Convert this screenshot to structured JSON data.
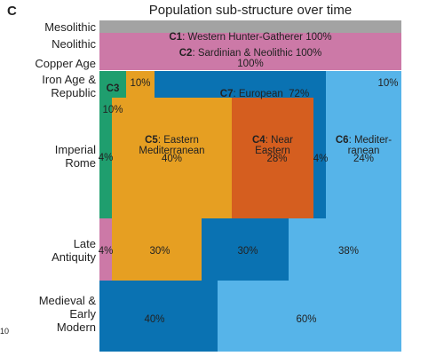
{
  "panel_letter": "C",
  "edge_mark": "10",
  "chart_data": {
    "type": "stacked-area",
    "title": "Population sub-structure over time",
    "periods": [
      {
        "label": "Mesolithic"
      },
      {
        "label": "Neolithic"
      },
      {
        "label": "Copper Age"
      },
      {
        "label": "Iron Age &\nRepublic"
      },
      {
        "label": "Imperial\nRome"
      },
      {
        "label": "Late\nAntiquity"
      },
      {
        "label": "Medieval &\nEarly\nModern"
      }
    ],
    "components": [
      {
        "id": "C1",
        "name": "Western Hunter-Gatherer",
        "color": "#a3a3a3"
      },
      {
        "id": "C2",
        "name": "Sardinian & Neolithic",
        "color": "#cc79a7"
      },
      {
        "id": "C3",
        "name": "",
        "color": "#1f9e6e"
      },
      {
        "id": "C4",
        "name": "Near\nEastern",
        "color": "#d55e1f"
      },
      {
        "id": "C5",
        "name": "Eastern\nMediterranean",
        "color": "#e69f22"
      },
      {
        "id": "C6",
        "name": "Mediter-\nranean",
        "color": "#56b4e9"
      },
      {
        "id": "C7",
        "name": "European",
        "color": "#0a72b2"
      }
    ],
    "values": {
      "Mesolithic": {
        "C1": 100
      },
      "Neolithic": {
        "C2": 100
      },
      "Copper Age": {
        "C2": 100
      },
      "Iron Age & Republic": {
        "C3": 10,
        "C5": 10,
        "C7": 72,
        "C6": 10
      },
      "Imperial Rome": {
        "C3": 4,
        "C5": 40,
        "C4": 28,
        "C7": 4,
        "C6": 24
      },
      "Late Antiquity": {
        "C2": 4,
        "C5": 30,
        "C7": 30,
        "C6": 38
      },
      "Medieval & Early Modern": {
        "C7": 40,
        "C6": 60
      }
    },
    "labels": {
      "c1": "100%",
      "c2": "100%",
      "copper": "100%",
      "iron_c3": "10%",
      "iron_c5": "10%",
      "iron_c7": "72%",
      "iron_c6": "10%",
      "rome_c3": "4%",
      "rome_c5": "40%",
      "rome_c4": "28%",
      "rome_c7": "4%",
      "rome_c6": "24%",
      "late_c2": "4%",
      "late_c5": "30%",
      "late_c7": "30%",
      "late_c6": "38%",
      "med_c7": "40%",
      "med_c6": "60%"
    }
  }
}
